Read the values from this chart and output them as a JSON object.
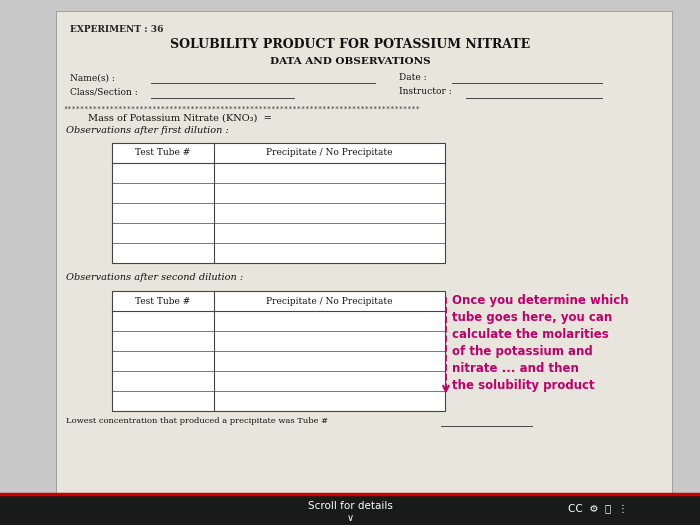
{
  "bg_color": "#c8c8c8",
  "paper_color": "#e8e5dc",
  "experiment_label": "EXPERIMENT : 36",
  "title1": "SOLUBILITY PRODUCT FOR POTASSIUM NITRATE",
  "title2": "DATA AND OBSERVATIONS",
  "name_label": "Name(s) :",
  "date_label": "Date :",
  "class_label": "Class/Section :",
  "instructor_label": "Instructor :",
  "stars": "************************************************************************************",
  "mass_label": "Mass of Potassium Nitrate (KNO₃)  =",
  "obs1_label": "Observations after first dilution :",
  "obs2_label": "Observations after second dilution :",
  "col1_header": "Test Tube #",
  "col2_header": "Precipitate / No Precipitate",
  "lowest_label": "Lowest concentration that produced a precipitate was Tube #",
  "annotation": "Once you determine which\ntube goes here, you can\ncalculate the molarities\nof the potassium and\nnitrate ... and then\nthe solubility product",
  "annotation_color": "#c0006a",
  "arrow_color": "#c0006a",
  "scroll_label": "Scroll for details",
  "num_rows": 5
}
